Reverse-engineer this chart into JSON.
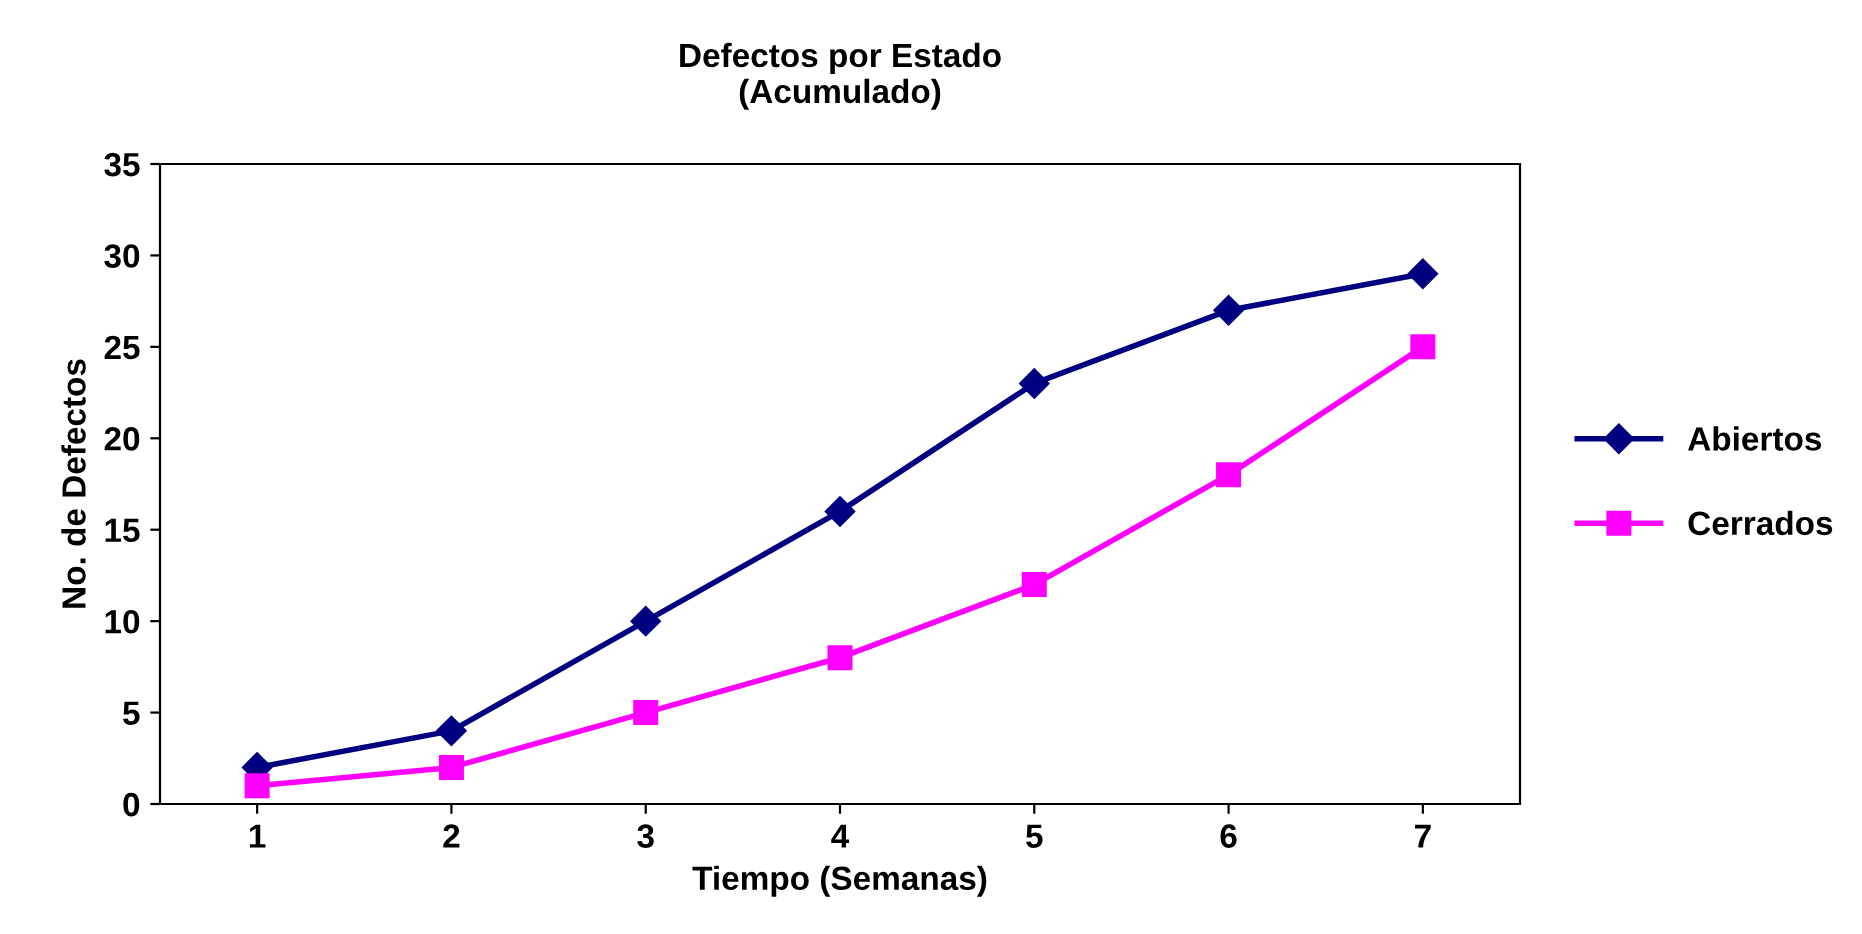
{
  "chart_data": {
    "type": "line",
    "title": "Defectos por Estado\n(Acumulado)",
    "xlabel": "Tiempo (Semanas)",
    "ylabel": "No. de Defectos",
    "categories": [
      "1",
      "2",
      "3",
      "4",
      "5",
      "6",
      "7"
    ],
    "series": [
      {
        "name": "Abiertos",
        "color": "#000080",
        "marker": "diamond",
        "values": [
          2,
          4,
          10,
          16,
          23,
          27,
          29
        ]
      },
      {
        "name": "Cerrados",
        "color": "#ff00ff",
        "marker": "square",
        "values": [
          1,
          2,
          5,
          8,
          12,
          18,
          25
        ]
      }
    ],
    "ylim": [
      0,
      35
    ],
    "yticks": [
      0,
      5,
      10,
      15,
      20,
      25,
      30,
      35
    ],
    "grid": false,
    "legend": "right",
    "line_style": "solid"
  }
}
